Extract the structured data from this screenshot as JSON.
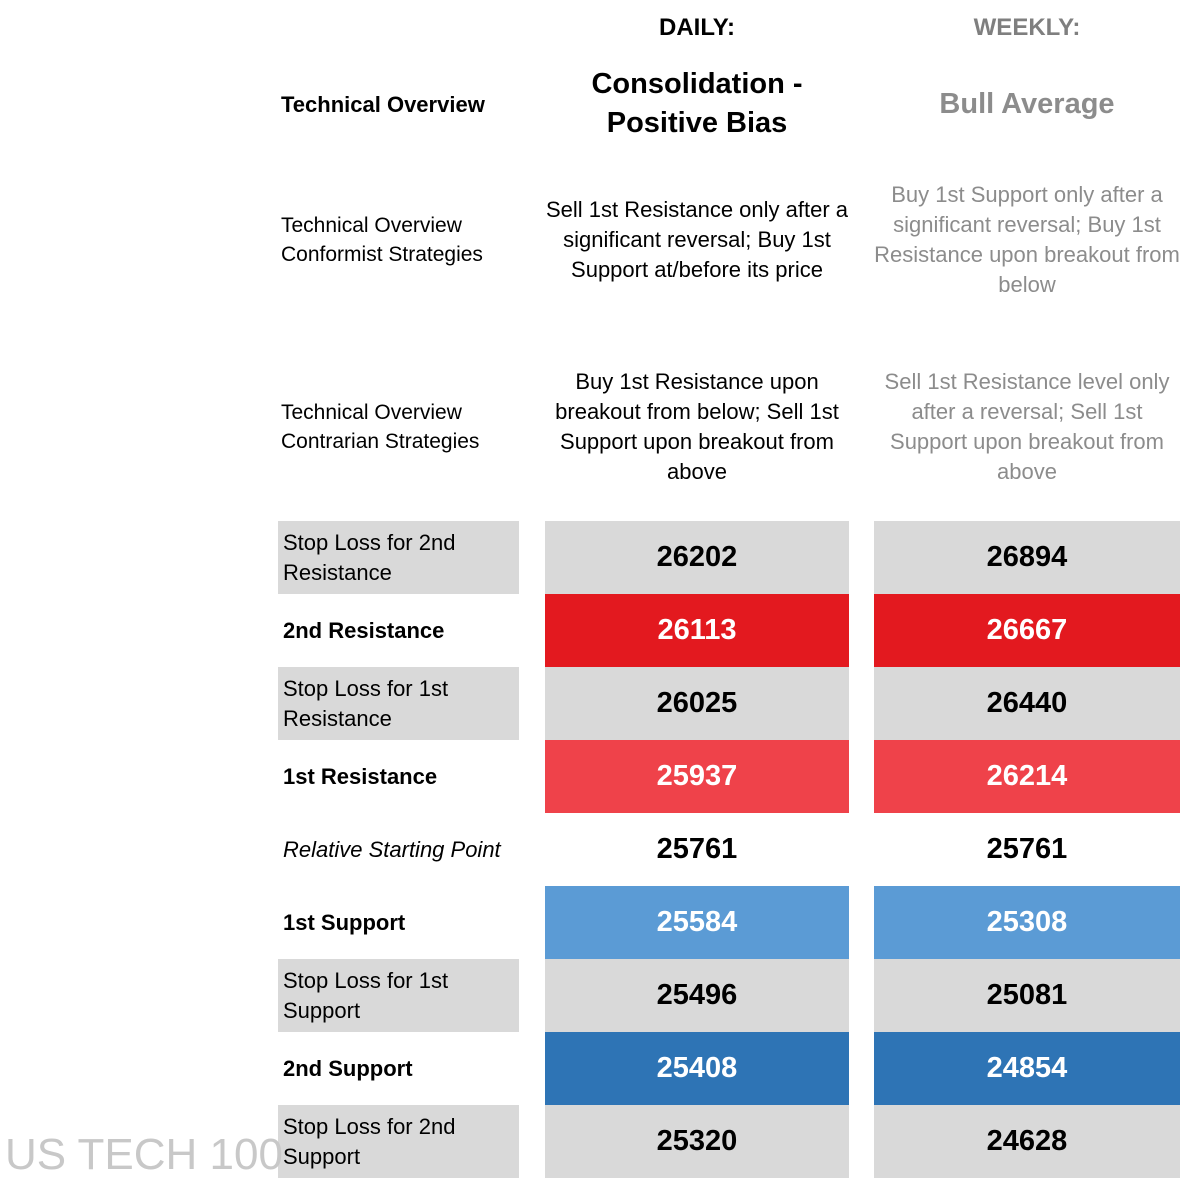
{
  "watermark": "US TECH 100",
  "header": {
    "daily": "DAILY:",
    "weekly": "WEEKLY:"
  },
  "overview": [
    {
      "label": "Technical Overview",
      "daily": "Consolidation - Positive Bias",
      "weekly": "Bull Average"
    },
    {
      "label": "Technical Overview Conformist Strategies",
      "daily": "Sell 1st Resistance only after a significant reversal; Buy 1st Support at/before its price",
      "weekly": "Buy 1st Support only after a significant reversal; Buy 1st Resistance upon breakout from below"
    },
    {
      "label": "Technical Overview Contrarian Strategies",
      "daily": "Buy 1st Resistance upon breakout from below; Sell 1st Support upon breakout from above",
      "weekly": "Sell 1st Resistance level only after a reversal; Sell 1st Support upon breakout from above"
    }
  ],
  "levels": [
    {
      "label": "Stop Loss for 2nd Resistance",
      "daily": 26202,
      "weekly": 26894
    },
    {
      "label": "2nd Resistance",
      "daily": 26113,
      "weekly": 26667
    },
    {
      "label": "Stop Loss for 1st Resistance",
      "daily": 26025,
      "weekly": 26440
    },
    {
      "label": "1st Resistance",
      "daily": 25937,
      "weekly": 26214
    },
    {
      "label": "Relative Starting Point",
      "daily": 25761,
      "weekly": 25761
    },
    {
      "label": "1st Support",
      "daily": 25584,
      "weekly": 25308
    },
    {
      "label": "Stop Loss for 1st Support",
      "daily": 25496,
      "weekly": 25081
    },
    {
      "label": "2nd Support",
      "daily": 25408,
      "weekly": 24854
    },
    {
      "label": "Stop Loss for 2nd Support",
      "daily": 25320,
      "weekly": 24628
    }
  ]
}
